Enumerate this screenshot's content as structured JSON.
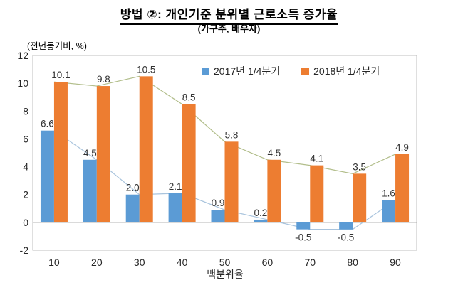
{
  "title": "방법 ②: 개인기준 분위별 근로소득 증가율",
  "subtitle": "(가구주, 배우자)",
  "axis_unit_label": "(전년동기비, %)",
  "x_axis_title": "백분위율",
  "chart_data": {
    "type": "bar",
    "categories": [
      "10",
      "20",
      "30",
      "40",
      "50",
      "60",
      "70",
      "80",
      "90"
    ],
    "series": [
      {
        "name": "2017년 1/4분기",
        "values": [
          6.6,
          4.5,
          2.0,
          2.1,
          0.9,
          0.2,
          -0.5,
          -0.5,
          1.6
        ],
        "bar_color": "#5B9BD5",
        "line_color": "#A9C4DD"
      },
      {
        "name": "2018년 1/4분기",
        "values": [
          10.1,
          9.8,
          10.5,
          8.5,
          5.8,
          4.5,
          4.1,
          3.5,
          4.9
        ],
        "bar_color": "#ED7D31",
        "line_color": "#B2BE8B"
      }
    ],
    "xlabel": "백분위율",
    "ylabel": "(전년동기비, %)",
    "ylim": [
      -2,
      12
    ],
    "ytick_step": 2,
    "grid": false,
    "legend_position": "top-right",
    "data_labels_decimals": 1,
    "colors": {
      "plot_border": "#BFBFBF",
      "zero_line": "#9E9E9E",
      "tick_label": "#262626",
      "data_label": "#333333"
    }
  }
}
